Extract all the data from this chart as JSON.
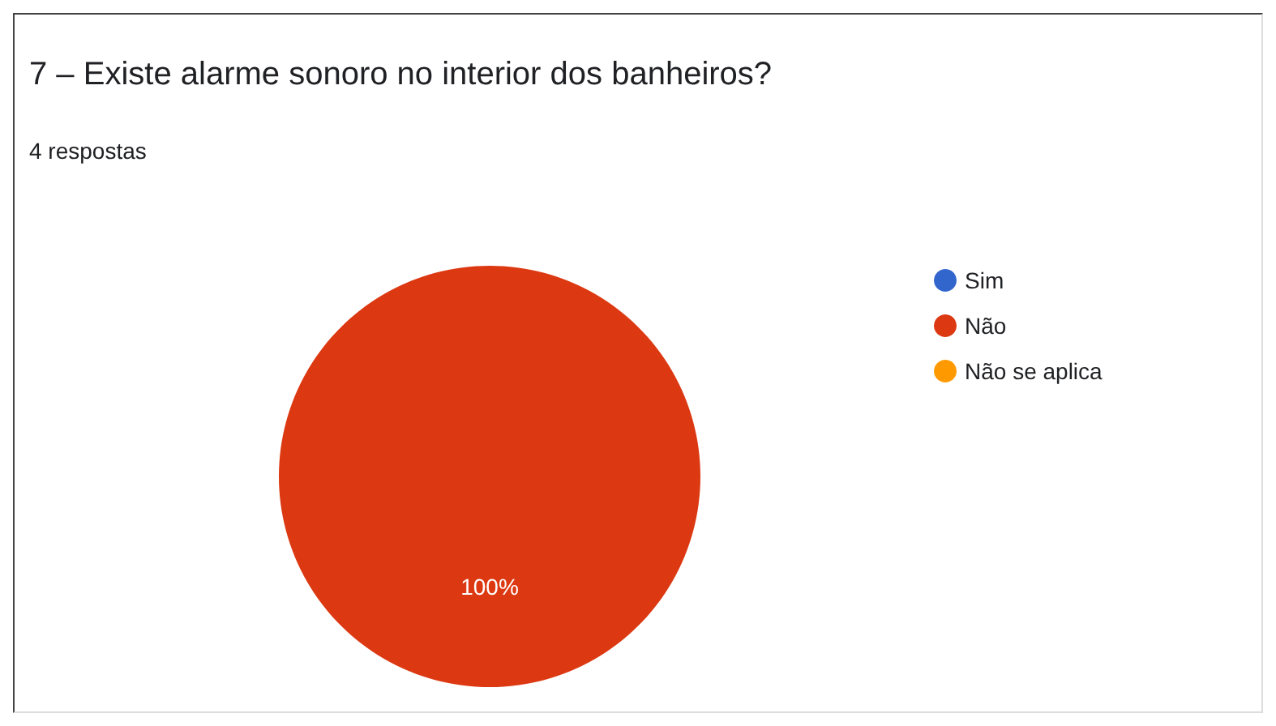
{
  "chart_data": {
    "type": "pie",
    "title": "7 – Existe alarme sonoro no interior dos banheiros?",
    "subtitle": "4 respostas",
    "categories": [
      "Sim",
      "Não",
      "Não se aplica"
    ],
    "values": [
      0,
      100,
      0
    ],
    "colors": [
      "#3366cc",
      "#dc3912",
      "#ff9900"
    ],
    "value_labels": [
      null,
      "100%",
      null
    ],
    "legend": "right"
  }
}
